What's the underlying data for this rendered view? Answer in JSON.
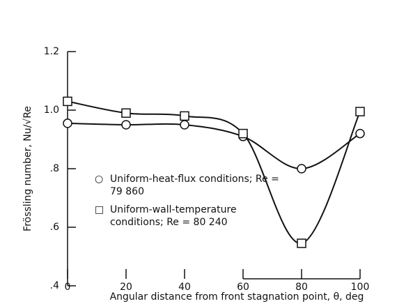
{
  "chart_data": {
    "type": "line",
    "x_label": "Angular distance from front stagnation point, θ, deg",
    "y_label": "Frössling number, Nu/√Re",
    "x": [
      0,
      20,
      40,
      60,
      80,
      100
    ],
    "series": [
      {
        "name": "Uniform-heat-flux conditions; Re = 79 860",
        "marker": "circle",
        "color": "#111111",
        "values": [
          0.955,
          0.95,
          0.95,
          0.91,
          0.8,
          0.92
        ]
      },
      {
        "name": "Uniform-wall-temperature conditions; Re = 80 240",
        "marker": "square",
        "color": "#111111",
        "values": [
          1.03,
          0.99,
          0.98,
          0.92,
          0.545,
          0.995
        ]
      }
    ],
    "xlim": [
      0,
      100
    ],
    "xticks": [
      0,
      20,
      40,
      60,
      80,
      100
    ],
    "ylim": [
      0.4,
      1.2
    ],
    "yticks": [
      {
        "value": 0.4,
        "label": ".4"
      },
      {
        "value": 0.6,
        "label": ".6"
      },
      {
        "value": 0.8,
        "label": ".8"
      },
      {
        "value": 1.0,
        "label": "1.0"
      },
      {
        "value": 1.2,
        "label": "1.2"
      }
    ]
  }
}
